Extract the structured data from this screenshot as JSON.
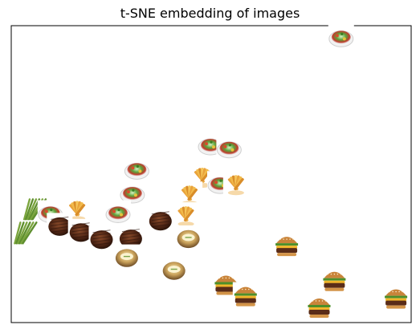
{
  "chart_data": {
    "type": "scatter",
    "title": "t-SNE embedding of images",
    "xlabel": "",
    "ylabel": "",
    "xlim": [
      0,
      1
    ],
    "ylim": [
      0,
      1
    ],
    "grid": false,
    "axis_ticks": false,
    "marker": "image-thumbnails",
    "points": [
      {
        "x": 0.825,
        "y": 0.961,
        "item": "salad"
      },
      {
        "x": 0.498,
        "y": 0.597,
        "item": "salad"
      },
      {
        "x": 0.545,
        "y": 0.587,
        "item": "salad"
      },
      {
        "x": 0.314,
        "y": 0.515,
        "item": "salad"
      },
      {
        "x": 0.303,
        "y": 0.435,
        "item": "salad"
      },
      {
        "x": 0.267,
        "y": 0.369,
        "item": "salad"
      },
      {
        "x": 0.478,
        "y": 0.492,
        "item": "fries"
      },
      {
        "x": 0.522,
        "y": 0.467,
        "item": "salad"
      },
      {
        "x": 0.562,
        "y": 0.467,
        "item": "fries"
      },
      {
        "x": 0.446,
        "y": 0.432,
        "item": "fries"
      },
      {
        "x": 0.437,
        "y": 0.362,
        "item": "fries"
      },
      {
        "x": 0.058,
        "y": 0.38,
        "item": "asparagus"
      },
      {
        "x": 0.035,
        "y": 0.302,
        "item": "asparagus"
      },
      {
        "x": 0.098,
        "y": 0.369,
        "item": "salad"
      },
      {
        "x": 0.165,
        "y": 0.38,
        "item": "fries"
      },
      {
        "x": 0.121,
        "y": 0.326,
        "item": "steak"
      },
      {
        "x": 0.174,
        "y": 0.306,
        "item": "steak"
      },
      {
        "x": 0.226,
        "y": 0.282,
        "item": "steak"
      },
      {
        "x": 0.299,
        "y": 0.285,
        "item": "steak"
      },
      {
        "x": 0.373,
        "y": 0.344,
        "item": "steak"
      },
      {
        "x": 0.443,
        "y": 0.284,
        "item": "potato"
      },
      {
        "x": 0.289,
        "y": 0.22,
        "item": "potato"
      },
      {
        "x": 0.407,
        "y": 0.177,
        "item": "potato"
      },
      {
        "x": 0.689,
        "y": 0.262,
        "item": "burger"
      },
      {
        "x": 0.537,
        "y": 0.131,
        "item": "burger"
      },
      {
        "x": 0.586,
        "y": 0.093,
        "item": "burger"
      },
      {
        "x": 0.808,
        "y": 0.144,
        "item": "burger"
      },
      {
        "x": 0.77,
        "y": 0.054,
        "item": "burger"
      },
      {
        "x": 0.962,
        "y": 0.085,
        "item": "burger"
      }
    ]
  }
}
